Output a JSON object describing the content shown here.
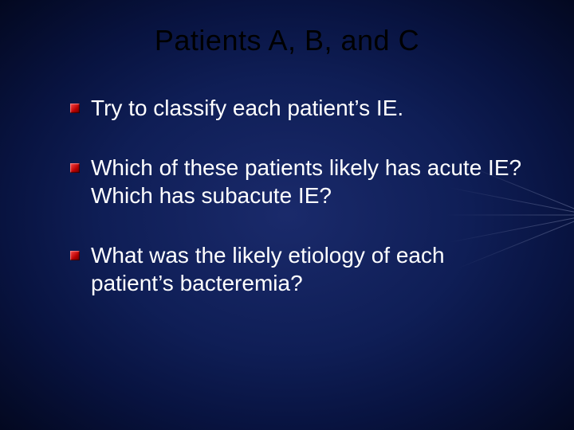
{
  "slide": {
    "title": "Patients A, B, and C",
    "title_color": "#000000",
    "title_fontsize": 36,
    "body_color": "#ffffff",
    "body_fontsize": 28,
    "background_gradient": {
      "type": "radial",
      "stops": [
        "#1a2a6b",
        "#0f1e56",
        "#081340",
        "#030820"
      ]
    },
    "bullet_marker_colors": [
      "#ff4a4a",
      "#b80000",
      "#6a0000"
    ],
    "bullets": [
      {
        "text": "Try to classify each patient’s IE."
      },
      {
        "text": "Which of these patients likely has acute IE?  Which has subacute IE?"
      },
      {
        "text": "What was the likely etiology of each patient’s bacteremia?"
      }
    ]
  }
}
